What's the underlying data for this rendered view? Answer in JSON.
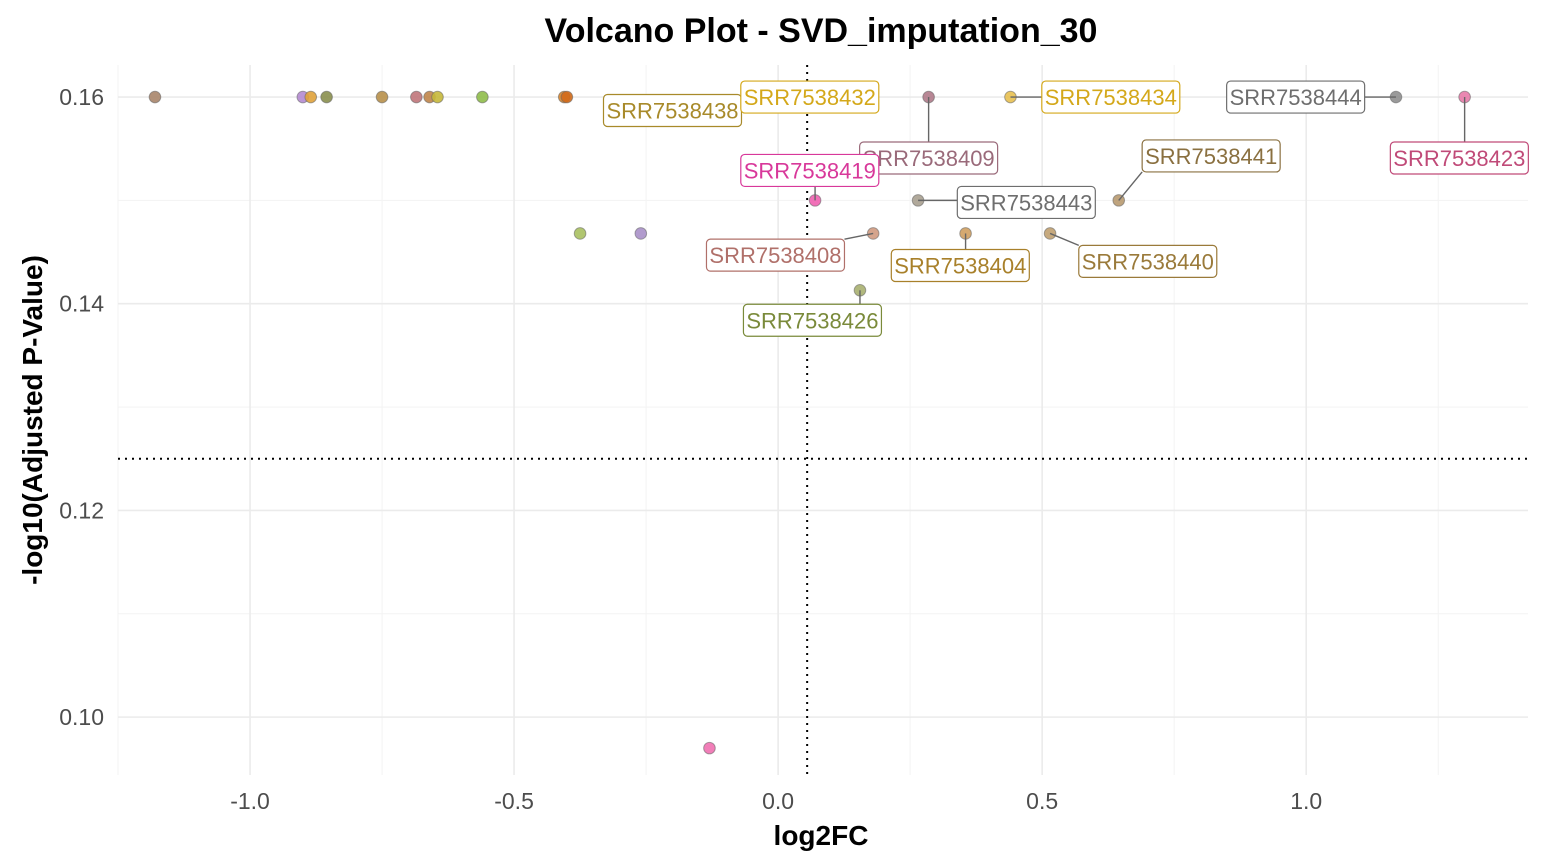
{
  "chart_data": {
    "type": "scatter",
    "title": "Volcano Plot - SVD_imputation_30",
    "xlabel": "log2FC",
    "ylabel": "-log10(Adjusted P-Value)",
    "xlim": [
      -1.25,
      1.42
    ],
    "ylim": [
      0.0944,
      0.1631
    ],
    "x_ticks": [
      -1.0,
      -0.5,
      0.0,
      0.5,
      1.0
    ],
    "x_tick_labels": [
      "-1.0",
      "-0.5",
      "0.0",
      "0.5",
      "1.0"
    ],
    "y_ticks": [
      0.1,
      0.12,
      0.14,
      0.16
    ],
    "y_tick_labels": [
      "0.10",
      "0.12",
      "0.14",
      "0.16"
    ],
    "x_minor_ticks": [
      -1.25,
      -0.75,
      -0.25,
      0.25,
      0.75,
      1.25
    ],
    "y_minor_ticks": [
      0.11,
      0.13,
      0.15
    ],
    "vline": 0.055,
    "hline": 0.125,
    "grid": true,
    "legend": "none",
    "points": [
      {
        "x": -1.18,
        "y": 0.16,
        "color": "#a8856a"
      },
      {
        "x": -0.9,
        "y": 0.16,
        "color": "#b48bd0"
      },
      {
        "x": -0.885,
        "y": 0.16,
        "color": "#e0a23a"
      },
      {
        "x": -0.855,
        "y": 0.16,
        "color": "#8a8f4e"
      },
      {
        "x": -0.75,
        "y": 0.16,
        "color": "#b8904a"
      },
      {
        "x": -0.685,
        "y": 0.16,
        "color": "#c0767a"
      },
      {
        "x": -0.66,
        "y": 0.16,
        "color": "#c0854a"
      },
      {
        "x": -0.645,
        "y": 0.16,
        "color": "#c6b83a"
      },
      {
        "x": -0.56,
        "y": 0.16,
        "color": "#8fbc4a"
      },
      {
        "x": -0.405,
        "y": 0.16,
        "color": "#d9852a"
      },
      {
        "x": -0.4,
        "y": 0.16,
        "color": "#d16a1a"
      },
      {
        "x": -0.06,
        "y": 0.16,
        "color": "#8fae7a",
        "label": "SRR7538438",
        "label_color": "#a88a2a",
        "label_x": -0.2,
        "label_y": 0.1587
      },
      {
        "x": 0.12,
        "y": 0.16,
        "color": "#e0b030",
        "label": "SRR7538432",
        "label_color": "#d4a81a",
        "label_x": 0.06,
        "label_y": 0.16
      },
      {
        "x": 0.285,
        "y": 0.16,
        "color": "#b07a8a",
        "label": "SRR7538409",
        "label_color": "#9a6a7a",
        "label_x": 0.285,
        "label_y": 0.1541
      },
      {
        "x": 0.44,
        "y": 0.16,
        "color": "#e8c050",
        "label": "SRR7538434",
        "label_color": "#d4a81a",
        "label_x": 0.63,
        "label_y": 0.16
      },
      {
        "x": 1.17,
        "y": 0.16,
        "color": "#8f8f8f",
        "label": "SRR7538444",
        "label_color": "#6e6e6e",
        "label_x": 0.98,
        "label_y": 0.16
      },
      {
        "x": 1.3,
        "y": 0.16,
        "color": "#e87aa8",
        "label": "SRR7538423",
        "label_color": "#c04a78",
        "label_x": 1.29,
        "label_y": 0.1541
      },
      {
        "x": 0.07,
        "y": 0.15,
        "color": "#f060b0",
        "label": "SRR7538419",
        "label_color": "#d8389a",
        "label_x": 0.06,
        "label_y": 0.1529
      },
      {
        "x": 0.265,
        "y": 0.15,
        "color": "#a8a090",
        "label": "SRR7538443",
        "label_color": "#6e6e6e",
        "label_x": 0.47,
        "label_y": 0.1498
      },
      {
        "x": 0.645,
        "y": 0.15,
        "color": "#b89a70",
        "label": "SRR7538441",
        "label_color": "#8a7040",
        "label_x": 0.82,
        "label_y": 0.1543
      },
      {
        "x": -0.375,
        "y": 0.1468,
        "color": "#a8c060"
      },
      {
        "x": -0.26,
        "y": 0.1468,
        "color": "#a890c8"
      },
      {
        "x": 0.18,
        "y": 0.1468,
        "color": "#d09a80",
        "label": "SRR7538408",
        "label_color": "#b0706a",
        "label_x": -0.005,
        "label_y": 0.1447
      },
      {
        "x": 0.355,
        "y": 0.1468,
        "color": "#d0a060",
        "label": "SRR7538404",
        "label_color": "#a8802a",
        "label_x": 0.345,
        "label_y": 0.1437
      },
      {
        "x": 0.515,
        "y": 0.1468,
        "color": "#c0a070",
        "label": "SRR7538440",
        "label_color": "#9a7a3a",
        "label_x": 0.7,
        "label_y": 0.1441
      },
      {
        "x": 0.155,
        "y": 0.1413,
        "color": "#a8b070",
        "label": "SRR7538426",
        "label_color": "#7a8a3a",
        "label_x": 0.065,
        "label_y": 0.1384
      },
      {
        "x": -0.13,
        "y": 0.097,
        "color": "#f070b0"
      }
    ]
  }
}
